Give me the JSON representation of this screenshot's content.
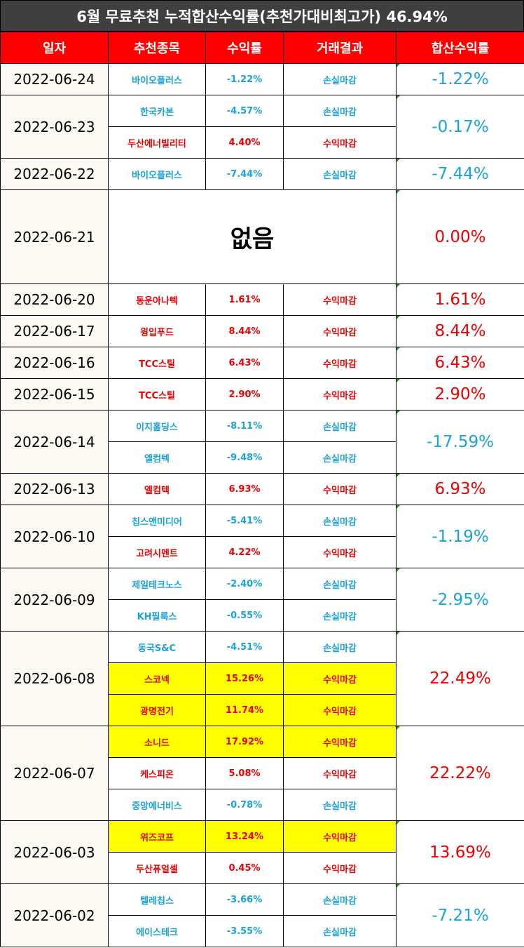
{
  "title": "6월 무료추천 누적합산수익률(추천가대비최고가) 46.94%",
  "columns": [
    "일자",
    "추천종목",
    "수익률",
    "거래결과",
    "합산수익률"
  ],
  "colors": {
    "gain": "#ee0000",
    "loss": "#1aa3d9",
    "highlight": "#ffff00",
    "header": "#ff0000",
    "title_bg": "#3f3f3f"
  },
  "rows": [
    {
      "date": "2022-06-24",
      "total": "-1.22%",
      "trades": [
        {
          "name": "바이오플러스",
          "ret": "-1.22%",
          "result": "손실마감"
        }
      ]
    },
    {
      "date": "2022-06-23",
      "total": "-0.17%",
      "trades": [
        {
          "name": "한국카본",
          "ret": "-4.57%",
          "result": "손실마감"
        },
        {
          "name": "두산에너빌리티",
          "ret": "4.40%",
          "result": "수익마감"
        }
      ]
    },
    {
      "date": "2022-06-22",
      "total": "-7.44%",
      "trades": [
        {
          "name": "바이오플러스",
          "ret": "-7.44%",
          "result": "손실마감"
        }
      ]
    },
    {
      "date": "2022-06-21",
      "total": "0.00%",
      "none": "없음",
      "trades": []
    },
    {
      "date": "2022-06-20",
      "total": "1.61%",
      "trades": [
        {
          "name": "동운아나텍",
          "ret": "1.61%",
          "result": "수익마감"
        }
      ]
    },
    {
      "date": "2022-06-17",
      "total": "8.44%",
      "trades": [
        {
          "name": "윙입푸드",
          "ret": "8.44%",
          "result": "수익마감"
        }
      ]
    },
    {
      "date": "2022-06-16",
      "total": "6.43%",
      "trades": [
        {
          "name": "TCC스틸",
          "ret": "6.43%",
          "result": "수익마감"
        }
      ]
    },
    {
      "date": "2022-06-15",
      "total": "2.90%",
      "trades": [
        {
          "name": "TCC스틸",
          "ret": "2.90%",
          "result": "수익마감"
        }
      ]
    },
    {
      "date": "2022-06-14",
      "total": "-17.59%",
      "trades": [
        {
          "name": "이지홀딩스",
          "ret": "-8.11%",
          "result": "손실마감"
        },
        {
          "name": "엘컴텍",
          "ret": "-9.48%",
          "result": "손실마감"
        }
      ]
    },
    {
      "date": "2022-06-13",
      "total": "6.93%",
      "trades": [
        {
          "name": "엘컴텍",
          "ret": "6.93%",
          "result": "수익마감"
        }
      ]
    },
    {
      "date": "2022-06-10",
      "total": "-1.19%",
      "trades": [
        {
          "name": "칩스앤미디어",
          "ret": "-5.41%",
          "result": "손실마감"
        },
        {
          "name": "고려시멘트",
          "ret": "4.22%",
          "result": "수익마감"
        }
      ]
    },
    {
      "date": "2022-06-09",
      "total": "-2.95%",
      "trades": [
        {
          "name": "제일테크노스",
          "ret": "-2.40%",
          "result": "손실마감"
        },
        {
          "name": "KH필룩스",
          "ret": "-0.55%",
          "result": "손실마감"
        }
      ]
    },
    {
      "date": "2022-06-08",
      "total": "22.49%",
      "trades": [
        {
          "name": "동국S&C",
          "ret": "-4.51%",
          "result": "손실마감"
        },
        {
          "name": "스코넥",
          "ret": "15.26%",
          "result": "수익마감",
          "highlight": true
        },
        {
          "name": "광명전기",
          "ret": "11.74%",
          "result": "수익마감",
          "highlight": true
        }
      ]
    },
    {
      "date": "2022-06-07",
      "total": "22.22%",
      "trades": [
        {
          "name": "소니드",
          "ret": "17.92%",
          "result": "수익마감",
          "highlight": true
        },
        {
          "name": "케스피온",
          "ret": "5.08%",
          "result": "수익마감"
        },
        {
          "name": "중앙에너비스",
          "ret": "-0.78%",
          "result": "손실마감"
        }
      ]
    },
    {
      "date": "2022-06-03",
      "total": "13.69%",
      "trades": [
        {
          "name": "위즈코프",
          "ret": "13.24%",
          "result": "수익마감",
          "highlight": true
        },
        {
          "name": "두산퓨얼셀",
          "ret": "0.45%",
          "result": "수익마감"
        }
      ]
    },
    {
      "date": "2022-06-02",
      "total": "-7.21%",
      "trades": [
        {
          "name": "텔레칩스",
          "ret": "-3.66%",
          "result": "손실마감"
        },
        {
          "name": "에이스테크",
          "ret": "-3.55%",
          "result": "손실마감"
        }
      ]
    }
  ]
}
